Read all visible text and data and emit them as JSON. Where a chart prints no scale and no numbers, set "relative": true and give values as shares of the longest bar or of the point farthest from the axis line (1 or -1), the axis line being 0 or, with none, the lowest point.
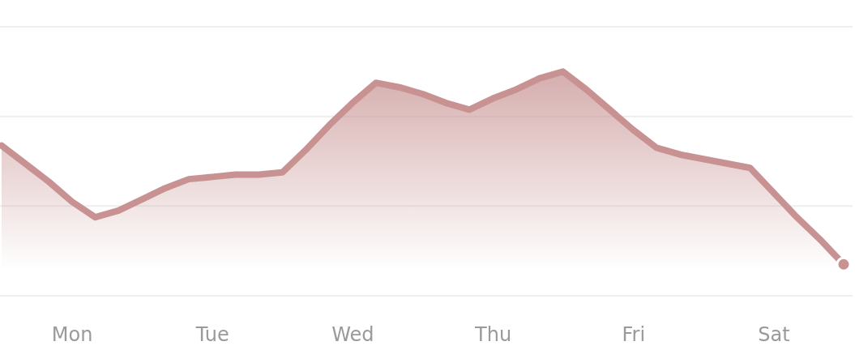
{
  "chart_data": {
    "type": "area",
    "relative": true,
    "tick_labels": "x",
    "ref_lines": [
      {
        "axis": "y",
        "value": 0.4,
        "color": "#eeeeee"
      },
      {
        "axis": "y",
        "value": 0.8,
        "color": "#eeeeee"
      },
      {
        "axis": "y",
        "value": 1.2,
        "color": "#eeeeee"
      }
    ],
    "categories": [
      null,
      null,
      null,
      "Mon",
      null,
      null,
      null,
      null,
      null,
      "Tue",
      null,
      null,
      null,
      null,
      null,
      "Wed",
      null,
      null,
      null,
      null,
      null,
      "Thu",
      null,
      null,
      null,
      null,
      null,
      "Fri",
      null,
      null,
      null,
      null,
      null,
      "Sat",
      null,
      null,
      null
    ],
    "series": [
      {
        "color": "#c89292",
        "values": [
          0.67,
          0.59,
          0.51,
          0.42,
          0.35,
          0.38,
          0.43,
          0.48,
          0.52,
          0.53,
          0.54,
          0.54,
          0.55,
          0.65,
          0.76,
          0.86,
          0.95,
          0.93,
          0.9,
          0.86,
          0.83,
          0.88,
          0.92,
          0.97,
          1,
          0.92,
          0.83,
          0.74,
          0.66,
          0.63,
          0.61,
          0.59,
          0.57,
          0.46,
          0.35,
          0.25,
          0.14
        ]
      },
      {
        "type": "scatter",
        "color": "#c89292",
        "values": [
          null,
          null,
          null,
          null,
          null,
          null,
          null,
          null,
          null,
          null,
          null,
          null,
          null,
          null,
          null,
          null,
          null,
          null,
          null,
          null,
          null,
          null,
          null,
          null,
          null,
          null,
          null,
          null,
          null,
          null,
          null,
          null,
          null,
          null,
          null,
          null,
          0.14
        ]
      }
    ]
  }
}
